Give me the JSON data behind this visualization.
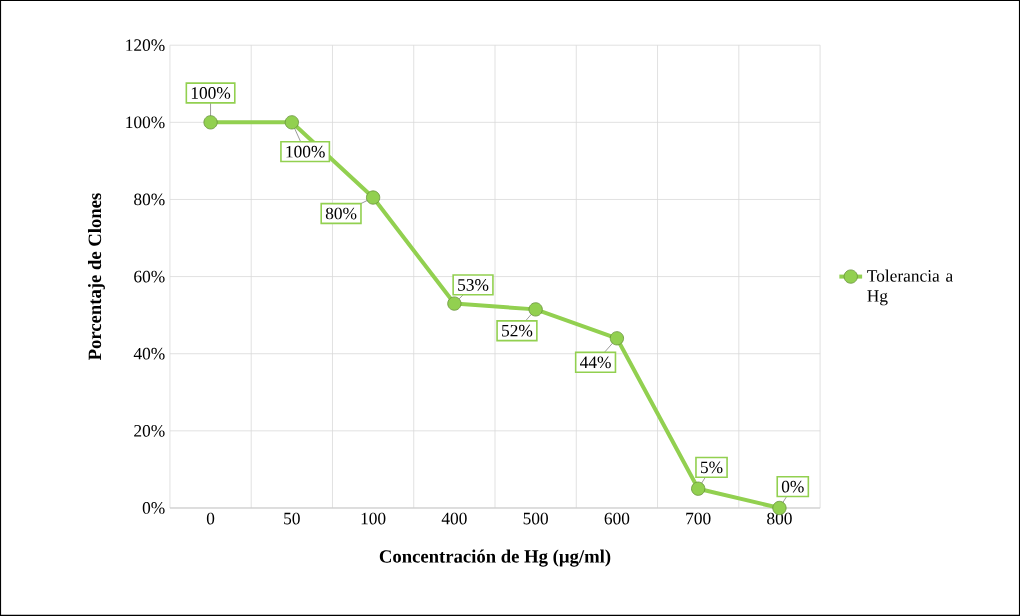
{
  "chart_data": {
    "type": "line",
    "xlabel": "Concentración de Hg (µg/ml)",
    "ylabel": "Porcentaje de Clones",
    "categories": [
      "0",
      "50",
      "100",
      "400",
      "500",
      "600",
      "700",
      "800"
    ],
    "series": [
      {
        "name": "Tolerancia a Hg",
        "color": "#92d050",
        "values": [
          100,
          100,
          80.5,
          53,
          51.5,
          44,
          5,
          0
        ],
        "value_labels": [
          "100%",
          "100%",
          "80%",
          "53%",
          "52%",
          "44%",
          "5%",
          "0%"
        ]
      }
    ],
    "ylim": [
      0,
      120
    ],
    "yticks": [
      {
        "value": 0,
        "label": "0%"
      },
      {
        "value": 20,
        "label": "20%"
      },
      {
        "value": 40,
        "label": "40%"
      },
      {
        "value": 60,
        "label": "60%"
      },
      {
        "value": 80,
        "label": "80%"
      },
      {
        "value": 100,
        "label": "100%"
      },
      {
        "value": 120,
        "label": "120%"
      }
    ],
    "grid": true,
    "legend": "right",
    "marker": "circle",
    "line_style": "solid"
  }
}
